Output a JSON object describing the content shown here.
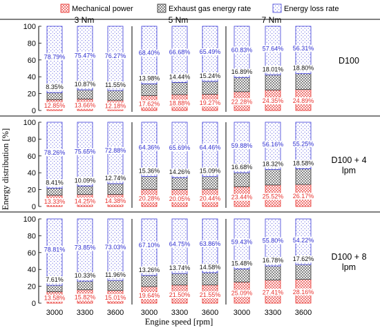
{
  "chart_data": {
    "type": "bar",
    "stacked": true,
    "ylabel": "Energy distribution [%]",
    "xlabel": "Engine speed [rpm]",
    "ylim": [
      0,
      100
    ],
    "yticks": [
      "0",
      "20",
      "40",
      "60",
      "80",
      "100"
    ],
    "xticks": [
      "3000",
      "3300",
      "3600",
      "3000",
      "3300",
      "3600",
      "3000",
      "3300",
      "3600"
    ],
    "torque_labels": [
      "3 Nm",
      "5 Nm",
      "7 Nm"
    ],
    "legend": {
      "position": "top",
      "entries": [
        {
          "key": "mech",
          "name": "Mechanical power"
        },
        {
          "key": "exh",
          "name": "Exhaust gas energy rate"
        },
        {
          "key": "loss",
          "name": "Energy loss rate"
        }
      ]
    },
    "colors": {
      "mech": "#e8322e",
      "exh": "#333333",
      "loss": "#3b3bd8",
      "mech_text": "#e8322e",
      "exh_text": "#111111",
      "loss_text": "#2b2bd0"
    },
    "panels": [
      {
        "fuel": "D100",
        "mech": [
          12.85,
          13.66,
          12.18,
          17.62,
          18.88,
          19.27,
          22.28,
          24.35,
          24.89
        ],
        "exh": [
          8.35,
          10.87,
          11.55,
          13.98,
          14.44,
          15.24,
          16.89,
          18.01,
          18.8
        ],
        "loss": [
          78.79,
          75.47,
          76.27,
          68.4,
          66.68,
          65.49,
          60.83,
          57.64,
          56.31
        ],
        "mech_labels": [
          "12.85%",
          "13.66%",
          "12.18%",
          "17.62%",
          "18.88%",
          "19.27%",
          "22.28%",
          "24.35%",
          "24.89%"
        ],
        "exh_labels": [
          "8.35%",
          "10.87%",
          "11.55%",
          "13.98%",
          "14.44%",
          "15.24%",
          "16.89%",
          "18.01%",
          "18.80%"
        ],
        "loss_labels": [
          "78.79%",
          "75.47%",
          "76.27%",
          "68.40%",
          "66.68%",
          "65.49%",
          "60.83%",
          "57.64%",
          "56.31%"
        ]
      },
      {
        "fuel": "D100 + 4 lpm",
        "mech": [
          13.33,
          14.25,
          14.38,
          20.28,
          20.05,
          20.44,
          23.44,
          25.52,
          26.17
        ],
        "exh": [
          8.41,
          10.09,
          12.74,
          15.36,
          14.26,
          15.09,
          16.68,
          18.32,
          18.58
        ],
        "loss": [
          78.26,
          75.65,
          72.88,
          64.36,
          65.69,
          64.46,
          59.88,
          56.16,
          55.25
        ],
        "mech_labels": [
          "13.33%",
          "14.25%",
          "14.38%",
          "20.28%",
          "20.05%",
          "20.44%",
          "23.44%",
          "25.52%",
          "26.17%"
        ],
        "exh_labels": [
          "8.41%",
          "10.09%",
          "12.74%",
          "15.36%",
          "14.26%",
          "15.09%",
          "16.68%",
          "18.32%",
          "18.58%"
        ],
        "loss_labels": [
          "78.26%",
          "75.65%",
          "72.88%",
          "64.36%",
          "65.69%",
          "64.46%",
          "59.88%",
          "56.16%",
          "55.25%"
        ]
      },
      {
        "fuel": "D100 + 8 lpm",
        "mech": [
          13.58,
          15.82,
          15.01,
          19.64,
          21.5,
          21.55,
          25.09,
          27.41,
          28.16
        ],
        "exh": [
          7.61,
          10.33,
          11.96,
          13.26,
          13.74,
          14.58,
          15.48,
          16.78,
          17.62
        ],
        "loss": [
          78.81,
          73.85,
          73.03,
          67.1,
          64.75,
          63.86,
          59.43,
          55.8,
          54.22
        ],
        "mech_labels": [
          "13.58%",
          "15.82%",
          "15.01%",
          "19.64%",
          "21.50%",
          "21.55%",
          "25.09%",
          "27.41%",
          "28.16%"
        ],
        "exh_labels": [
          "7.61%",
          "10.33%",
          "11.96%",
          "13.26%",
          "13.74%",
          "14.58%",
          "15.48%",
          "16.78%",
          "17.62%"
        ],
        "loss_labels": [
          "78.81%",
          "73.85%",
          "73.03%",
          "67.10%",
          "64.75%",
          "63.86%",
          "59.43%",
          "55.80%",
          "54.22%"
        ]
      }
    ]
  }
}
